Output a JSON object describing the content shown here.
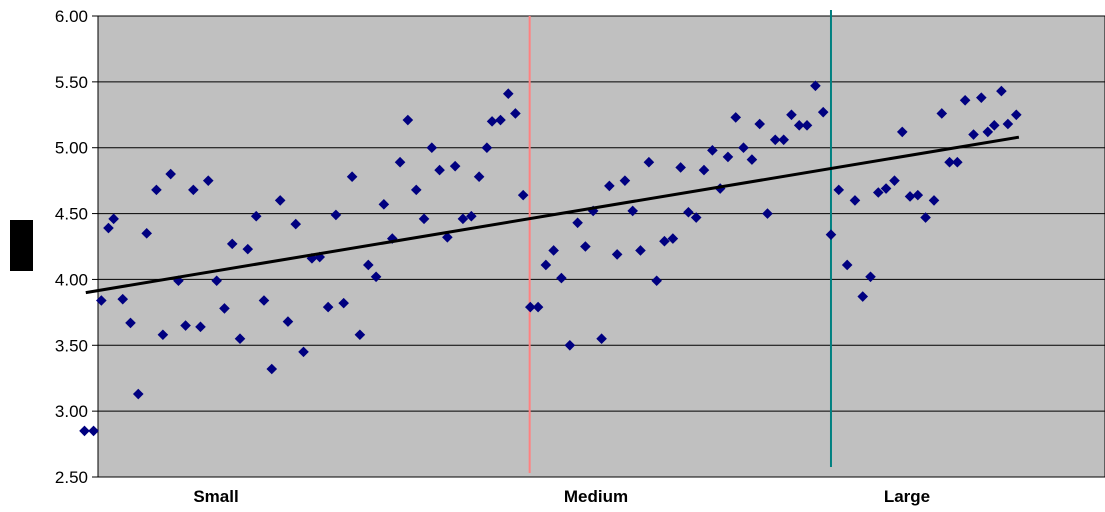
{
  "chart_data": {
    "type": "scatter",
    "title": "",
    "xlabel": "",
    "ylabel": "",
    "ylim": [
      2.5,
      6.0
    ],
    "xlim": [
      0,
      145
    ],
    "y_ticks": [
      "2.50",
      "3.00",
      "3.50",
      "4.00",
      "4.50",
      "5.00",
      "5.50",
      "6.00"
    ],
    "categories": [
      "Small",
      "Medium",
      "Large"
    ],
    "grid": true,
    "legend": "none",
    "colors": {
      "plot_background": "#c0c0c0",
      "points": "#000080",
      "trendline": "#000000",
      "divider_small_medium": "#ff8080",
      "divider_medium_large": "#008080"
    },
    "dividers_x": [
      69.5,
      116
    ],
    "trendline": {
      "x": [
        1.0,
        145.0
      ],
      "y": [
        3.9,
        5.08
      ]
    },
    "series": [
      {
        "points": [
          [
            0.8,
            2.85
          ],
          [
            2.2,
            2.85
          ],
          [
            3.4,
            3.84
          ],
          [
            4.5,
            4.39
          ],
          [
            5.3,
            4.46
          ],
          [
            6.7,
            3.85
          ],
          [
            7.9,
            3.67
          ],
          [
            9.1,
            3.13
          ],
          [
            10.4,
            4.35
          ],
          [
            11.9,
            4.68
          ],
          [
            12.9,
            3.58
          ],
          [
            14.1,
            4.8
          ],
          [
            15.3,
            3.99
          ],
          [
            16.4,
            3.65
          ],
          [
            17.6,
            4.68
          ],
          [
            18.7,
            3.64
          ],
          [
            19.9,
            4.75
          ],
          [
            21.2,
            3.99
          ],
          [
            22.4,
            3.78
          ],
          [
            23.6,
            4.27
          ],
          [
            24.8,
            3.55
          ],
          [
            26.0,
            4.23
          ],
          [
            27.3,
            4.48
          ],
          [
            28.5,
            3.84
          ],
          [
            29.7,
            3.32
          ],
          [
            31.0,
            4.6
          ],
          [
            32.2,
            3.68
          ],
          [
            33.4,
            4.42
          ],
          [
            34.6,
            3.45
          ],
          [
            35.9,
            4.16
          ],
          [
            37.1,
            4.17
          ],
          [
            38.4,
            3.79
          ],
          [
            39.6,
            4.49
          ],
          [
            40.8,
            3.82
          ],
          [
            42.1,
            4.78
          ],
          [
            43.3,
            3.58
          ],
          [
            44.6,
            4.11
          ],
          [
            45.8,
            4.02
          ],
          [
            47.0,
            4.57
          ],
          [
            48.3,
            4.31
          ],
          [
            49.5,
            4.89
          ],
          [
            50.7,
            5.21
          ],
          [
            52.0,
            4.68
          ],
          [
            53.2,
            4.46
          ],
          [
            54.4,
            5.0
          ],
          [
            55.6,
            4.83
          ],
          [
            56.8,
            4.32
          ],
          [
            58.0,
            4.86
          ],
          [
            59.2,
            4.46
          ],
          [
            60.5,
            4.48
          ],
          [
            61.7,
            4.78
          ],
          [
            62.9,
            5.0
          ],
          [
            63.7,
            5.2
          ],
          [
            65.0,
            5.21
          ],
          [
            66.2,
            5.41
          ],
          [
            67.3,
            5.26
          ],
          [
            68.5,
            4.64
          ],
          [
            69.6,
            3.79
          ],
          [
            70.8,
            3.79
          ],
          [
            72.0,
            4.11
          ],
          [
            73.2,
            4.22
          ],
          [
            74.4,
            4.01
          ],
          [
            75.7,
            3.5
          ],
          [
            76.9,
            4.43
          ],
          [
            78.1,
            4.25
          ],
          [
            79.3,
            4.52
          ],
          [
            80.6,
            3.55
          ],
          [
            81.8,
            4.71
          ],
          [
            83.0,
            4.19
          ],
          [
            84.2,
            4.75
          ],
          [
            85.4,
            4.52
          ],
          [
            86.6,
            4.22
          ],
          [
            87.9,
            4.89
          ],
          [
            89.1,
            3.99
          ],
          [
            90.3,
            4.29
          ],
          [
            91.6,
            4.31
          ],
          [
            92.8,
            4.85
          ],
          [
            94.0,
            4.51
          ],
          [
            95.2,
            4.47
          ],
          [
            96.4,
            4.83
          ],
          [
            97.7,
            4.98
          ],
          [
            98.9,
            4.69
          ],
          [
            100.1,
            4.93
          ],
          [
            101.3,
            5.23
          ],
          [
            102.5,
            5.0
          ],
          [
            103.8,
            4.91
          ],
          [
            105.0,
            5.18
          ],
          [
            106.2,
            4.5
          ],
          [
            107.4,
            5.06
          ],
          [
            108.7,
            5.06
          ],
          [
            109.9,
            5.25
          ],
          [
            111.1,
            5.17
          ],
          [
            112.3,
            5.17
          ],
          [
            113.6,
            5.47
          ],
          [
            114.8,
            5.27
          ],
          [
            116.0,
            4.34
          ],
          [
            117.2,
            4.68
          ],
          [
            118.5,
            4.11
          ],
          [
            119.7,
            4.6
          ],
          [
            120.9,
            3.87
          ],
          [
            122.1,
            4.02
          ],
          [
            123.3,
            4.66
          ],
          [
            124.5,
            4.69
          ],
          [
            125.8,
            4.75
          ],
          [
            127.0,
            5.12
          ],
          [
            128.2,
            4.63
          ],
          [
            129.4,
            4.64
          ],
          [
            130.6,
            4.47
          ],
          [
            131.9,
            4.6
          ],
          [
            133.1,
            5.26
          ],
          [
            134.3,
            4.89
          ],
          [
            135.5,
            4.89
          ],
          [
            136.7,
            5.36
          ],
          [
            138.0,
            5.1
          ],
          [
            139.2,
            5.38
          ],
          [
            140.2,
            5.12
          ],
          [
            141.2,
            5.17
          ],
          [
            142.3,
            5.43
          ],
          [
            143.3,
            5.18
          ],
          [
            144.6,
            5.25
          ]
        ]
      }
    ]
  }
}
